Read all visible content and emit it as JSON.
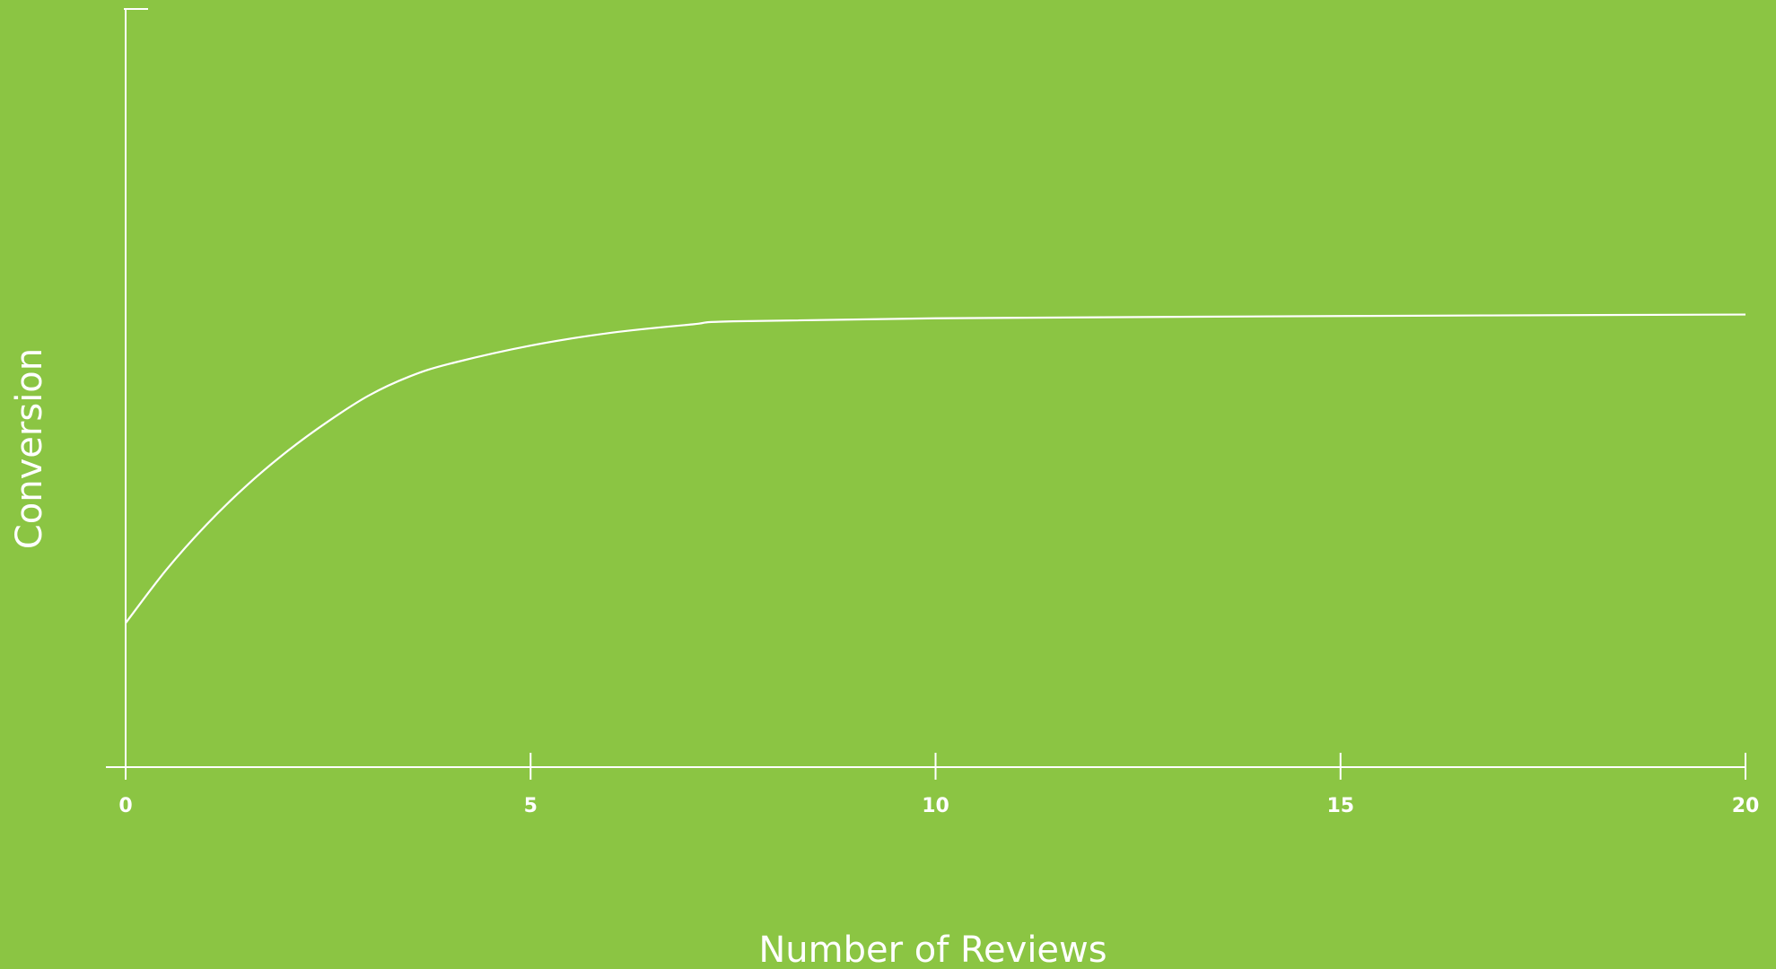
{
  "chart_data": {
    "type": "line",
    "title": "",
    "xlabel": "Number of Reviews",
    "ylabel": "Conversion",
    "xlim": [
      0,
      20
    ],
    "ylim": [
      0,
      1
    ],
    "x_ticks": [
      0,
      5,
      10,
      15,
      20
    ],
    "x_tick_labels": [
      "0",
      "5",
      "10",
      "15",
      "20"
    ],
    "y_ticks": [],
    "grid": false,
    "legend": "none",
    "colors": {
      "background": "#8bc543",
      "foreground": "#ffffff"
    },
    "series": [
      {
        "x": [
          0,
          0.5,
          1,
          1.5,
          2,
          2.5,
          3,
          3.5,
          4,
          5,
          6,
          7,
          7.5,
          10,
          15,
          20
        ],
        "values": [
          0.19,
          0.26,
          0.32,
          0.372,
          0.417,
          0.456,
          0.49,
          0.515,
          0.532,
          0.556,
          0.573,
          0.584,
          0.588,
          0.592,
          0.595,
          0.597
        ]
      }
    ]
  }
}
